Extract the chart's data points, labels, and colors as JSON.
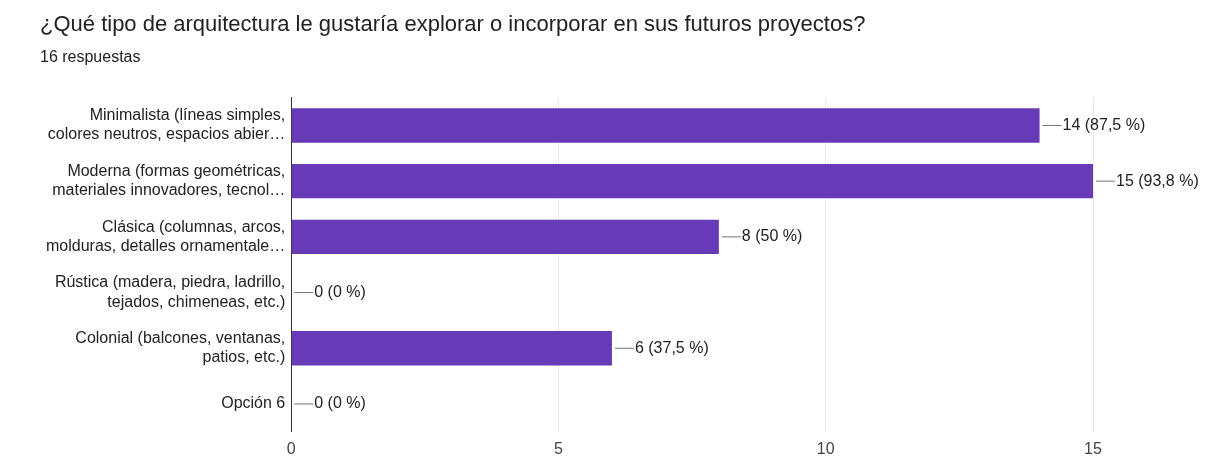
{
  "chart_data": {
    "type": "bar",
    "orientation": "horizontal",
    "title": "¿Qué tipo de arquitectura le gustaría explorar o incorporar en sus futuros proyectos?",
    "subtitle": "16 respuestas",
    "categories": [
      "Minimalista (líneas simples,\ncolores neutros, espacios abier…",
      "Moderna (formas geométricas,\nmateriales innovadores, tecnol…",
      "Clásica (columnas, arcos,\nmolduras, detalles ornamentale…",
      "Rústica (madera, piedra, ladrillo,\ntejados, chimeneas, etc.)",
      "Colonial (balcones, ventanas,\npatios, etc.)",
      "Opción 6"
    ],
    "values": [
      14,
      15,
      8,
      0,
      6,
      0
    ],
    "value_labels": [
      "14 (87,5 %)",
      "15 (93,8 %)",
      "8 (50 %)",
      "0 (0 %)",
      "6 (37,5 %)",
      "0 (0 %)"
    ],
    "color": "#673ab7",
    "xlim": [
      0,
      15
    ],
    "xticks": [
      0,
      5,
      10,
      15
    ],
    "grid": "x",
    "legend": false
  }
}
